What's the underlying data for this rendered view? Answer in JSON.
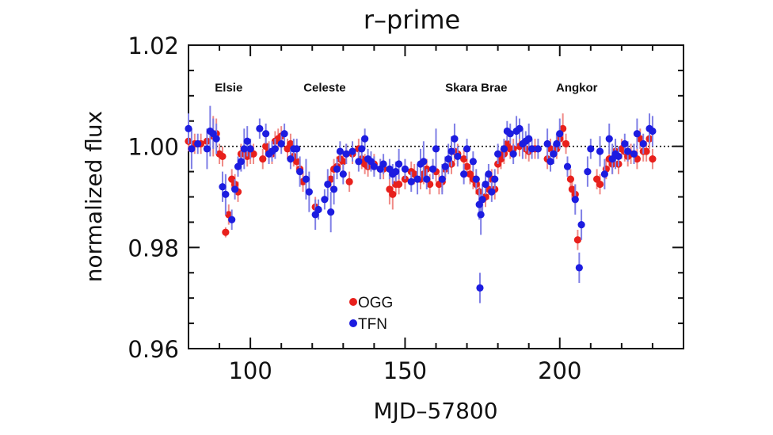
{
  "chart_data": {
    "type": "scatter",
    "title": "r–prime",
    "xlabel": "MJD–57800",
    "ylabel": "normalized flux",
    "xlim": [
      80,
      240
    ],
    "ylim": [
      0.96,
      1.02
    ],
    "xticks": [
      {
        "value": 100,
        "label": "100"
      },
      {
        "value": 150,
        "label": "150"
      },
      {
        "value": 200,
        "label": "200"
      }
    ],
    "yticks": [
      {
        "value": 0.96,
        "label": "0.96"
      },
      {
        "value": 0.98,
        "label": "0.98"
      },
      {
        "value": 1.0,
        "label": "1.00"
      },
      {
        "value": 1.02,
        "label": "1.02"
      }
    ],
    "reference_line": {
      "y": 1.0,
      "style": "dotted"
    },
    "grid": false,
    "legend_placement": "lower-left",
    "annotations": [
      {
        "text": "Elsie",
        "x": 93,
        "y": 1.0108
      },
      {
        "text": "Celeste",
        "x": 124,
        "y": 1.0108
      },
      {
        "text": "Skara Brae",
        "x": 173,
        "y": 1.0108
      },
      {
        "text": "Angkor",
        "x": 205.5,
        "y": 1.0108
      }
    ],
    "series": [
      {
        "name": "OGG",
        "color": "#e8201c",
        "errcolor": "#f08a86",
        "points": [
          [
            80,
            1.001,
            0.002
          ],
          [
            82,
            1.0005,
            0.002
          ],
          [
            84,
            1.0005,
            0.002
          ],
          [
            86,
            1.001,
            0.002
          ],
          [
            88,
            1.002,
            0.004
          ],
          [
            89,
            1.0025,
            0.003
          ],
          [
            90,
            0.9985,
            0.002
          ],
          [
            91,
            0.998,
            0.002
          ],
          [
            92,
            0.983,
            0.001
          ],
          [
            93,
            0.9865,
            0.002
          ],
          [
            94,
            0.9935,
            0.002
          ],
          [
            95,
            0.9925,
            0.002
          ],
          [
            96,
            0.991,
            0.002
          ],
          [
            97,
            0.9985,
            0.002
          ],
          [
            98,
            0.9985,
            0.002
          ],
          [
            99,
            0.998,
            0.002
          ],
          [
            100,
            0.9985,
            0.002
          ],
          [
            101,
            0.9985,
            0.002
          ],
          [
            104,
            0.9975,
            0.002
          ],
          [
            105,
            1.0,
            0.002
          ],
          [
            106,
            0.999,
            0.002
          ],
          [
            107,
            0.9985,
            0.002
          ],
          [
            108,
            1.001,
            0.002
          ],
          [
            109,
            1.0015,
            0.002
          ],
          [
            110,
            1.002,
            0.002
          ],
          [
            112,
            0.9995,
            0.002
          ],
          [
            113,
            1.0005,
            0.002
          ],
          [
            114,
            0.998,
            0.002
          ],
          [
            115,
            0.997,
            0.002
          ],
          [
            116,
            0.9955,
            0.002
          ],
          [
            117,
            0.993,
            0.002
          ],
          [
            121,
            0.988,
            0.002
          ],
          [
            126,
            0.9935,
            0.002
          ],
          [
            127,
            0.9955,
            0.002
          ],
          [
            128,
            0.996,
            0.002
          ],
          [
            129,
            0.9975,
            0.002
          ],
          [
            130,
            0.997,
            0.002
          ],
          [
            131,
            0.9985,
            0.002
          ],
          [
            132,
            0.993,
            0.002
          ],
          [
            133,
            0.9985,
            0.002
          ],
          [
            135,
            0.9995,
            0.002
          ],
          [
            136,
            0.9975,
            0.002
          ],
          [
            137,
            0.9965,
            0.002
          ],
          [
            138,
            0.996,
            0.002
          ],
          [
            140,
            0.9965,
            0.002
          ],
          [
            142,
            0.9955,
            0.002
          ],
          [
            143,
            0.9955,
            0.002
          ],
          [
            145,
            0.9915,
            0.003
          ],
          [
            146,
            0.9905,
            0.003
          ],
          [
            147,
            0.9925,
            0.002
          ],
          [
            148,
            0.9925,
            0.002
          ],
          [
            150,
            0.9935,
            0.002
          ],
          [
            152,
            0.995,
            0.002
          ],
          [
            153,
            0.9945,
            0.002
          ],
          [
            155,
            0.9935,
            0.002
          ],
          [
            156,
            0.9945,
            0.002
          ],
          [
            157,
            0.9955,
            0.002
          ],
          [
            158,
            0.9925,
            0.002
          ],
          [
            160,
            0.995,
            0.002
          ],
          [
            161,
            0.9925,
            0.002
          ],
          [
            162,
            0.993,
            0.002
          ],
          [
            163,
            0.9955,
            0.002
          ],
          [
            165,
            0.9965,
            0.002
          ],
          [
            166,
            0.999,
            0.002
          ],
          [
            167,
            0.9985,
            0.002
          ],
          [
            169,
            0.9975,
            0.002
          ],
          [
            170,
            0.996,
            0.002
          ],
          [
            171,
            0.9945,
            0.002
          ],
          [
            172,
            0.9935,
            0.002
          ],
          [
            173,
            0.9925,
            0.002
          ],
          [
            174,
            0.991,
            0.002
          ],
          [
            175,
            0.9895,
            0.002
          ],
          [
            176,
            0.99,
            0.002
          ],
          [
            177,
            0.9915,
            0.002
          ],
          [
            178,
            0.9935,
            0.002
          ],
          [
            179,
            0.9915,
            0.002
          ],
          [
            180,
            0.9965,
            0.002
          ],
          [
            181,
            0.9975,
            0.002
          ],
          [
            182,
            0.9985,
            0.002
          ],
          [
            183,
            1.0005,
            0.002
          ],
          [
            184,
            0.9995,
            0.002
          ],
          [
            185,
            0.9995,
            0.002
          ],
          [
            187,
            1.0,
            0.002
          ],
          [
            189,
            0.9995,
            0.002
          ],
          [
            190,
            0.999,
            0.002
          ],
          [
            192,
            0.9995,
            0.002
          ],
          [
            196,
            0.9975,
            0.002
          ],
          [
            197,
            0.9995,
            0.002
          ],
          [
            198,
            0.9985,
            0.002
          ],
          [
            199,
            0.9995,
            0.002
          ],
          [
            200,
            1.0015,
            0.002
          ],
          [
            201,
            1.0035,
            0.003
          ],
          [
            202,
            1.0005,
            0.002
          ],
          [
            203.5,
            0.9935,
            0.002
          ],
          [
            204,
            0.9915,
            0.002
          ],
          [
            205,
            0.9905,
            0.002
          ],
          [
            205.8,
            0.9815,
            0.002
          ],
          [
            212,
            0.9935,
            0.002
          ],
          [
            213,
            0.9925,
            0.002
          ],
          [
            215,
            0.9955,
            0.002
          ],
          [
            216,
            0.9975,
            0.002
          ],
          [
            217,
            0.9965,
            0.002
          ],
          [
            218,
            0.999,
            0.002
          ],
          [
            219,
            0.9965,
            0.002
          ],
          [
            220,
            0.9995,
            0.002
          ],
          [
            221,
            0.999,
            0.002
          ],
          [
            222,
            0.998,
            0.002
          ],
          [
            223,
            0.9985,
            0.002
          ],
          [
            224,
            0.9985,
            0.002
          ],
          [
            225,
            0.9975,
            0.002
          ],
          [
            226,
            1.0015,
            0.002
          ],
          [
            227,
            0.999,
            0.002
          ],
          [
            228,
            0.999,
            0.002
          ],
          [
            229,
            1.0015,
            0.002
          ],
          [
            230,
            0.9975,
            0.002
          ]
        ]
      },
      {
        "name": "TFN",
        "color": "#1c1ce0",
        "errcolor": "#7f7fe6",
        "points": [
          [
            80,
            1.0035,
            0.003
          ],
          [
            81,
            0.9995,
            0.004
          ],
          [
            83,
            1.0005,
            0.002
          ],
          [
            86,
            0.9995,
            0.004
          ],
          [
            87,
            1.003,
            0.005
          ],
          [
            88,
            1.0025,
            0.003
          ],
          [
            89,
            1.0015,
            0.003
          ],
          [
            91,
            0.992,
            0.003
          ],
          [
            92,
            0.9905,
            0.004
          ],
          [
            94,
            0.9855,
            0.002
          ],
          [
            95,
            0.9915,
            0.002
          ],
          [
            96,
            0.996,
            0.002
          ],
          [
            97,
            0.997,
            0.002
          ],
          [
            98,
            0.9995,
            0.004
          ],
          [
            99,
            1.001,
            0.003
          ],
          [
            100,
            0.9995,
            0.002
          ],
          [
            103,
            1.0035,
            0.002
          ],
          [
            105,
            1.0025,
            0.002
          ],
          [
            106,
            0.9985,
            0.002
          ],
          [
            107,
            0.999,
            0.002
          ],
          [
            108,
            0.9995,
            0.002
          ],
          [
            110,
            1.0005,
            0.002
          ],
          [
            111,
            1.0025,
            0.002
          ],
          [
            113,
            0.9975,
            0.002
          ],
          [
            114,
            0.9995,
            0.002
          ],
          [
            115,
            0.9995,
            0.002
          ],
          [
            116,
            0.995,
            0.003
          ],
          [
            118,
            0.9935,
            0.004
          ],
          [
            119,
            0.991,
            0.004
          ],
          [
            121,
            0.9865,
            0.003
          ],
          [
            122,
            0.9875,
            0.002
          ],
          [
            124,
            0.9895,
            0.002
          ],
          [
            125,
            0.9925,
            0.003
          ],
          [
            126,
            0.987,
            0.004
          ],
          [
            127,
            0.9915,
            0.003
          ],
          [
            128,
            0.9955,
            0.002
          ],
          [
            129,
            0.999,
            0.002
          ],
          [
            130,
            0.9945,
            0.002
          ],
          [
            131,
            0.9985,
            0.002
          ],
          [
            133,
            0.999,
            0.002
          ],
          [
            135,
            0.997,
            0.002
          ],
          [
            136,
            0.9995,
            0.002
          ],
          [
            137,
            1.0015,
            0.002
          ],
          [
            138,
            0.9975,
            0.002
          ],
          [
            139,
            0.997,
            0.002
          ],
          [
            140,
            0.996,
            0.002
          ],
          [
            142,
            0.9955,
            0.002
          ],
          [
            143,
            0.9965,
            0.002
          ],
          [
            145,
            0.9955,
            0.002
          ],
          [
            146,
            0.9945,
            0.002
          ],
          [
            147,
            0.995,
            0.002
          ],
          [
            148,
            0.9965,
            0.003
          ],
          [
            150,
            0.9955,
            0.002
          ],
          [
            152,
            0.993,
            0.002
          ],
          [
            154,
            0.9935,
            0.003
          ],
          [
            155,
            0.9965,
            0.003
          ],
          [
            156,
            0.997,
            0.004
          ],
          [
            157,
            0.9935,
            0.002
          ],
          [
            159,
            0.9955,
            0.002
          ],
          [
            160,
            0.9995,
            0.004
          ],
          [
            162,
            0.9935,
            0.003
          ],
          [
            163,
            0.996,
            0.002
          ],
          [
            164,
            0.9975,
            0.003
          ],
          [
            165,
            0.999,
            0.003
          ],
          [
            166,
            1.0015,
            0.003
          ],
          [
            167,
            0.998,
            0.002
          ],
          [
            169,
            0.9945,
            0.002
          ],
          [
            170,
            0.9995,
            0.002
          ],
          [
            172,
            0.997,
            0.002
          ],
          [
            173,
            0.9935,
            0.002
          ],
          [
            174,
            0.9885,
            0.003
          ],
          [
            174.5,
            0.9865,
            0.004
          ],
          [
            174.2,
            0.972,
            0.003
          ],
          [
            175,
            0.9895,
            0.003
          ],
          [
            176,
            0.9925,
            0.002
          ],
          [
            177,
            0.9945,
            0.002
          ],
          [
            178,
            0.991,
            0.002
          ],
          [
            179,
            0.9935,
            0.002
          ],
          [
            180,
            0.9985,
            0.002
          ],
          [
            182,
            0.9995,
            0.002
          ],
          [
            183,
            1.003,
            0.002
          ],
          [
            184,
            1.0025,
            0.002
          ],
          [
            185,
            0.9985,
            0.002
          ],
          [
            186,
            1.003,
            0.003
          ],
          [
            187,
            1.0035,
            0.002
          ],
          [
            188,
            1.0005,
            0.003
          ],
          [
            189,
            1.001,
            0.002
          ],
          [
            190,
            1.0015,
            0.003
          ],
          [
            191,
            0.9995,
            0.002
          ],
          [
            193,
            0.9995,
            0.002
          ],
          [
            196,
            1.0005,
            0.003
          ],
          [
            197,
            0.997,
            0.002
          ],
          [
            198,
            0.9985,
            0.002
          ],
          [
            199,
            1.0005,
            0.002
          ],
          [
            200,
            1.0025,
            0.003
          ],
          [
            202.5,
            0.996,
            0.002
          ],
          [
            205,
            0.9895,
            0.003
          ],
          [
            206.3,
            0.976,
            0.003
          ],
          [
            207,
            0.9845,
            0.003
          ],
          [
            209,
            0.995,
            0.003
          ],
          [
            210,
            0.9995,
            0.002
          ],
          [
            213,
            0.999,
            0.003
          ],
          [
            214.5,
            0.9945,
            0.003
          ],
          [
            216,
            1.0015,
            0.003
          ],
          [
            217,
            0.9975,
            0.003
          ],
          [
            218,
            0.9985,
            0.003
          ],
          [
            219,
            0.998,
            0.002
          ],
          [
            221,
            1.0005,
            0.002
          ],
          [
            222,
            0.999,
            0.002
          ],
          [
            224,
            0.9985,
            0.002
          ],
          [
            225,
            1.0025,
            0.003
          ],
          [
            227,
            1.0005,
            0.002
          ],
          [
            229,
            1.0035,
            0.003
          ],
          [
            230,
            1.003,
            0.003
          ]
        ]
      }
    ]
  }
}
